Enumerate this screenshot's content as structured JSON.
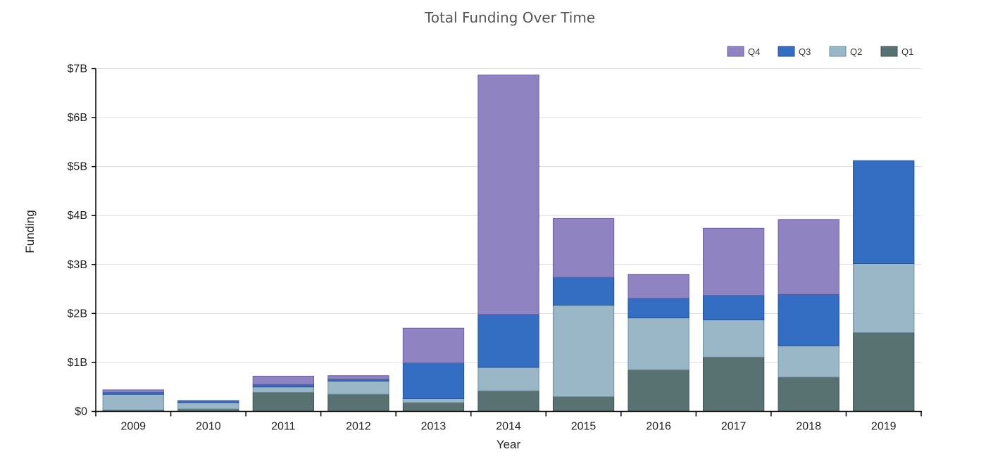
{
  "chart_data": {
    "type": "bar",
    "stacked": true,
    "title": "Total Funding Over Time",
    "xlabel": "Year",
    "ylabel": "Funding",
    "ylim": [
      0,
      7
    ],
    "y_unit": "billions USD",
    "y_ticks": [
      0,
      1,
      2,
      3,
      4,
      5,
      6,
      7
    ],
    "y_tick_labels": [
      "$0",
      "$1B",
      "$2B",
      "$3B",
      "$4B",
      "$5B",
      "$6B",
      "$7B"
    ],
    "grid": "horizontal",
    "legend_position": "top-right",
    "legend_order": [
      "Q4",
      "Q3",
      "Q2",
      "Q1"
    ],
    "categories": [
      "2009",
      "2010",
      "2011",
      "2012",
      "2013",
      "2014",
      "2015",
      "2016",
      "2017",
      "2018",
      "2019"
    ],
    "series": [
      {
        "name": "Q1",
        "color": "#587271",
        "stroke": "#3e5453",
        "values": [
          0.03,
          0.05,
          0.39,
          0.35,
          0.18,
          0.42,
          0.3,
          0.85,
          1.11,
          0.7,
          1.61
        ]
      },
      {
        "name": "Q2",
        "color": "#9ab7c8",
        "stroke": "#6d8ea2",
        "values": [
          0.32,
          0.13,
          0.11,
          0.27,
          0.08,
          0.48,
          1.87,
          1.06,
          0.76,
          0.64,
          1.41
        ]
      },
      {
        "name": "Q3",
        "color": "#346ec3",
        "stroke": "#1f4f96",
        "values": [
          0.04,
          0.04,
          0.05,
          0.04,
          0.73,
          1.08,
          0.57,
          0.4,
          0.5,
          1.05,
          2.1
        ]
      },
      {
        "name": "Q4",
        "color": "#9083c2",
        "stroke": "#6b5fa5",
        "values": [
          0.05,
          0.0,
          0.17,
          0.07,
          0.71,
          4.89,
          1.2,
          0.49,
          1.37,
          1.53,
          0.0
        ]
      }
    ]
  }
}
